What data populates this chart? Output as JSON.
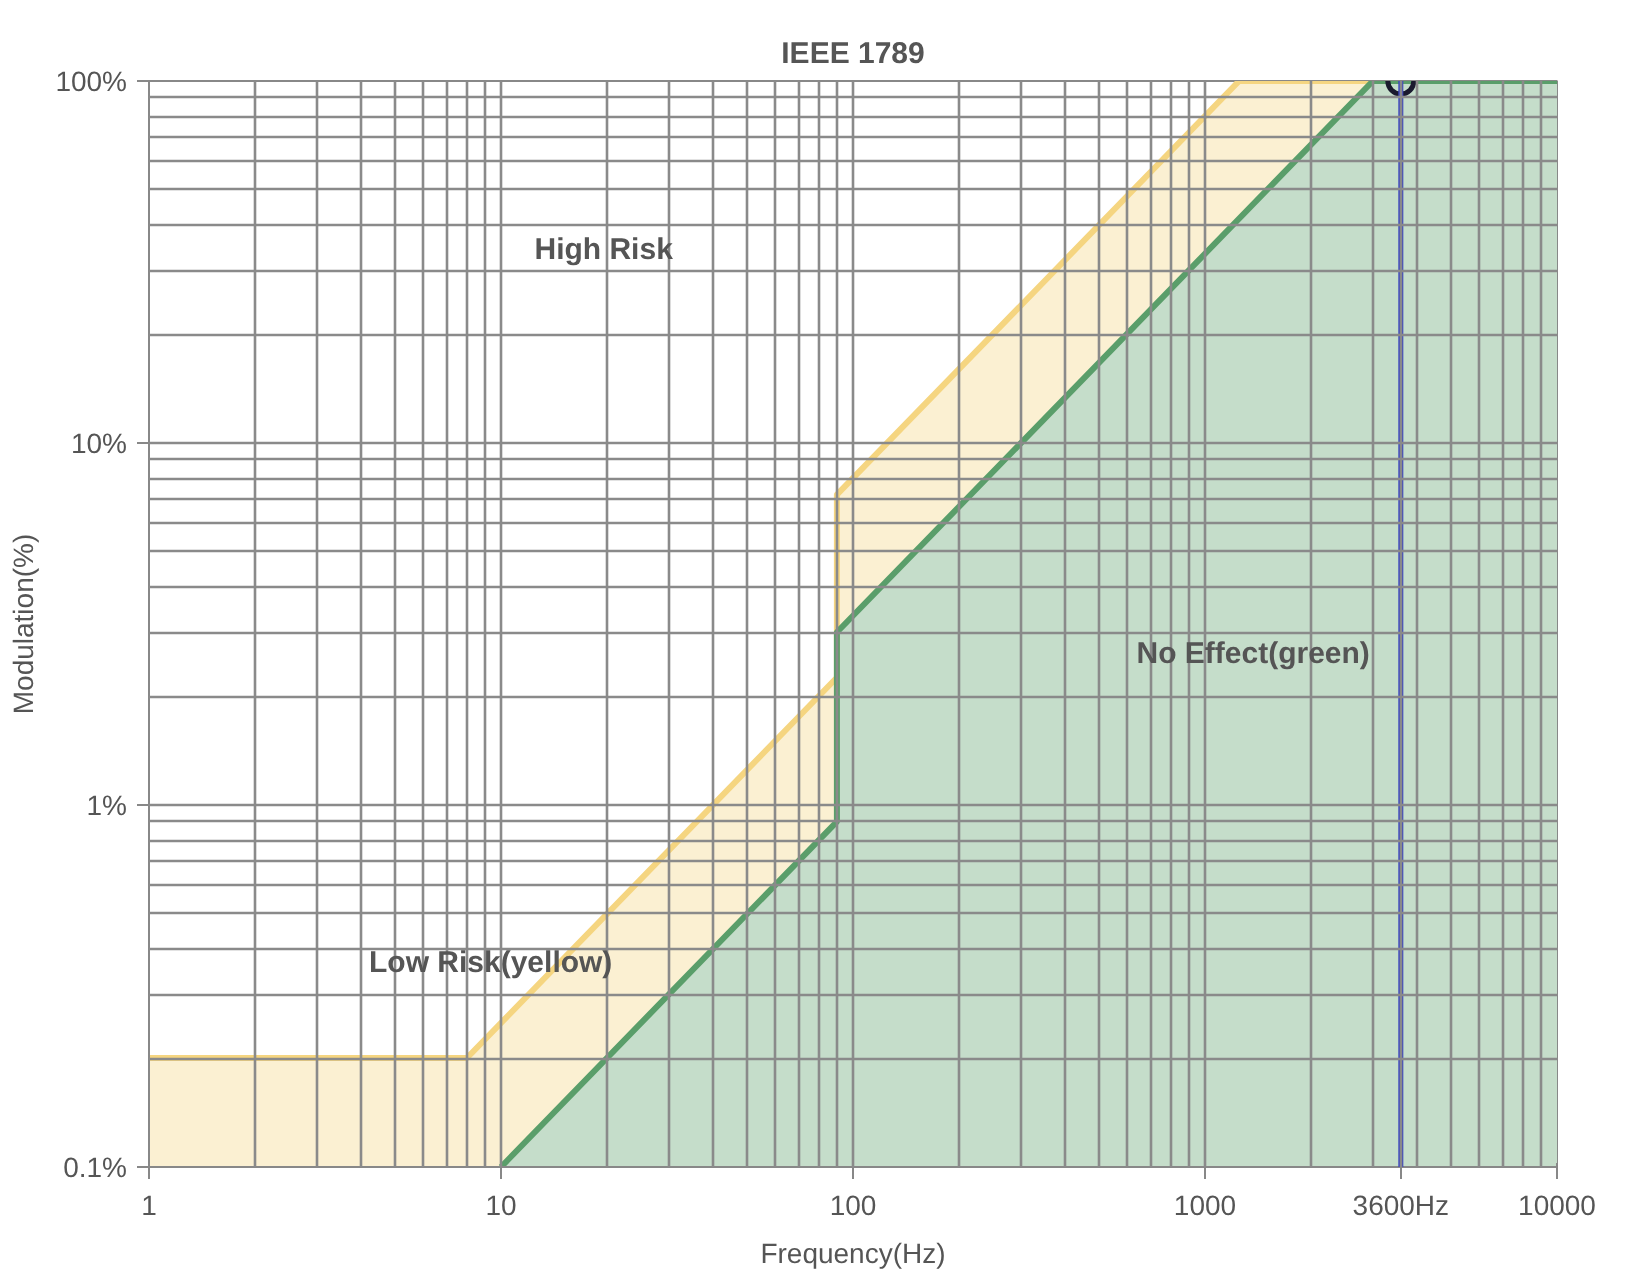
{
  "chart_data": {
    "type": "area",
    "title": "IEEE 1789",
    "xlabel": "Frequency(Hz)",
    "ylabel": "Modulation(%)",
    "log": "xy",
    "grid": true,
    "marker": "none",
    "line_style": "solid",
    "xlim": [
      1,
      10000
    ],
    "ylim": [
      0.1,
      100
    ],
    "xticks": [
      1,
      10,
      100,
      1000,
      {
        "value": 3600,
        "label": "3600Hz"
      },
      10000
    ],
    "yticks": [
      {
        "value": 0.1,
        "label": "0.1%"
      },
      {
        "value": 1,
        "label": "1%"
      },
      {
        "value": 10,
        "label": "10%"
      },
      {
        "value": 100,
        "label": "100%"
      }
    ],
    "series": [
      {
        "color": "#f5d580",
        "x": [
          1,
          8,
          90,
          90,
          1250,
          10000
        ],
        "values": [
          0.2,
          0.2,
          2.25,
          7.2,
          100,
          100
        ]
      },
      {
        "color": "#5a9e6a",
        "x": [
          10,
          90,
          90,
          3000,
          10000
        ],
        "values": [
          0.1,
          0.9,
          3,
          100,
          100
        ]
      },
      {
        "type": "scatter",
        "marker": "circle",
        "color": "#1a1a2e",
        "x": [
          3600
        ],
        "values": [
          100
        ]
      }
    ],
    "ref_lines": [
      {
        "axis": "x",
        "value": 3600,
        "color": "#3a44c0"
      }
    ],
    "annotations": [
      "High Risk",
      "Low Risk(yellow)",
      "No Effect(green)"
    ]
  }
}
